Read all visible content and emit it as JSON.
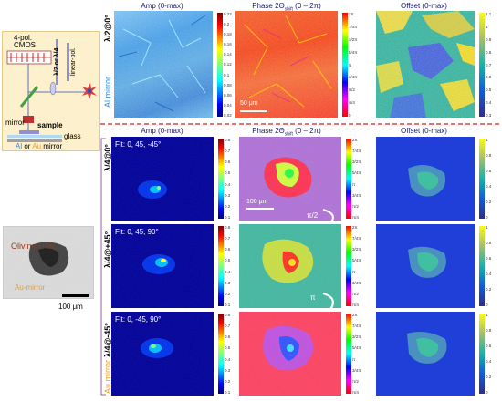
{
  "top": {
    "row_label": "λ/2@0°",
    "side_label": "Al mirror",
    "titles": {
      "amp": "Amp (0-max)",
      "phase_prefix": "Phase 2Θ",
      "phase_sub": "shift",
      "phase_suffix": " (0 – 2π)",
      "offset": "Offset (0-max)"
    },
    "amp_ticks": [
      "0.22",
      "0.2",
      "0.18",
      "0.16",
      "0.14",
      "0.12",
      "0.1",
      "0.08",
      "0.06",
      "0.04",
      "0.02"
    ],
    "phase_ticks": [
      "2π",
      "7/4π",
      "3/2π",
      "5/4π",
      "π",
      "3/4π",
      "π/2",
      "π/4",
      "0"
    ],
    "offset_ticks": [
      "1.1",
      "1",
      "0.9",
      "0.8",
      "0.7",
      "0.6",
      "0.5",
      "0.4",
      "0.3"
    ],
    "scale_bar": "50 μm"
  },
  "schematic": {
    "cmos_line1": "4-pol.",
    "cmos_line2": "CMOS",
    "waveplate": "λ/2 or λ/4",
    "polarizer": "linear-pol.",
    "mirror": "mirror",
    "sample": "sample",
    "glass": "glass",
    "base_al": "Al",
    "base_or": " or ",
    "base_au": "Au",
    "base_tail": " mirror"
  },
  "photo": {
    "label": "Olivine HTA",
    "sublabel": "Au-mirror",
    "scale": "100 μm"
  },
  "bottom": {
    "side_label": "Au mirror",
    "titles": {
      "amp": "Amp (0-max)",
      "phase_prefix": "Phase 2Θ",
      "phase_sub": "shift",
      "phase_suffix": " (0 – 2π)",
      "offset": "Offset (0-max)"
    },
    "rows": [
      {
        "label": "λ/4@0°",
        "fit": "Fit: 0, 45, -45°",
        "amp_ticks": [
          "0.8",
          "0.7",
          "0.6",
          "0.5",
          "0.4",
          "0.3",
          "0.2",
          "0.1"
        ]
      },
      {
        "label": "λ/4@+45°",
        "fit": "Fit: 0, 45, 90°",
        "amp_ticks": [
          "0.8",
          "0.7",
          "0.6",
          "0.5",
          "0.4",
          "0.3",
          "0.2",
          "0.1"
        ]
      },
      {
        "label": "λ/4@-45°",
        "fit": "Fit: 0, -45, 90°",
        "amp_ticks": [
          "0.8",
          "0.7",
          "0.6",
          "0.5",
          "0.4",
          "0.3",
          "0.2",
          "0.1"
        ]
      }
    ],
    "phase_ticks": [
      "2π",
      "7/4π",
      "3/2π",
      "5/4π",
      "π",
      "3/4π",
      "π/2",
      "π/4"
    ],
    "offset_ticks": [
      "1",
      "0.8",
      "0.6",
      "0.4",
      "0.2",
      "0"
    ],
    "scale_bar": "100 μm",
    "arrow1": "π/2",
    "arrow2": "π"
  },
  "colors": {
    "title": "#1a1a66",
    "al_blue": "#2f8fe0",
    "au_orange": "#f0a020",
    "divider": "#d02020"
  }
}
